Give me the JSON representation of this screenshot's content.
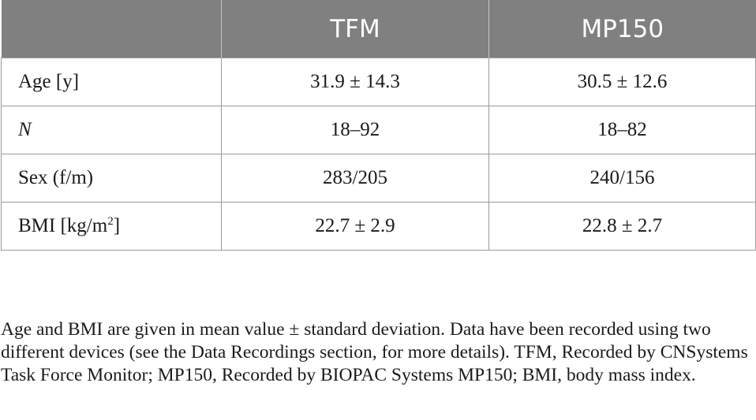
{
  "table": {
    "headers": [
      "",
      "TFM",
      "MP150"
    ],
    "rows": [
      {
        "label": "Age [y]",
        "tfm": "31.9 ± 14.3",
        "mp150": "30.5 ± 12.6"
      },
      {
        "label": "N",
        "tfm": "18–92",
        "mp150": "18–82"
      },
      {
        "label": "Sex (f/m)",
        "tfm": "283/205",
        "mp150": "240/156"
      },
      {
        "label_prefix": "BMI [kg/m",
        "label_sup": "2",
        "label_suffix": "]",
        "tfm": "22.7 ± 2.9",
        "mp150": "22.8 ± 2.7"
      }
    ]
  },
  "footnote": "Age and BMI are given in mean value ± standard deviation. Data have been recorded using two different devices (see the Data Recordings section, for more details). TFM, Recorded by CNSystems Task Force Monitor; MP150, Recorded by BIOPAC Systems MP150; BMI, body mass index."
}
